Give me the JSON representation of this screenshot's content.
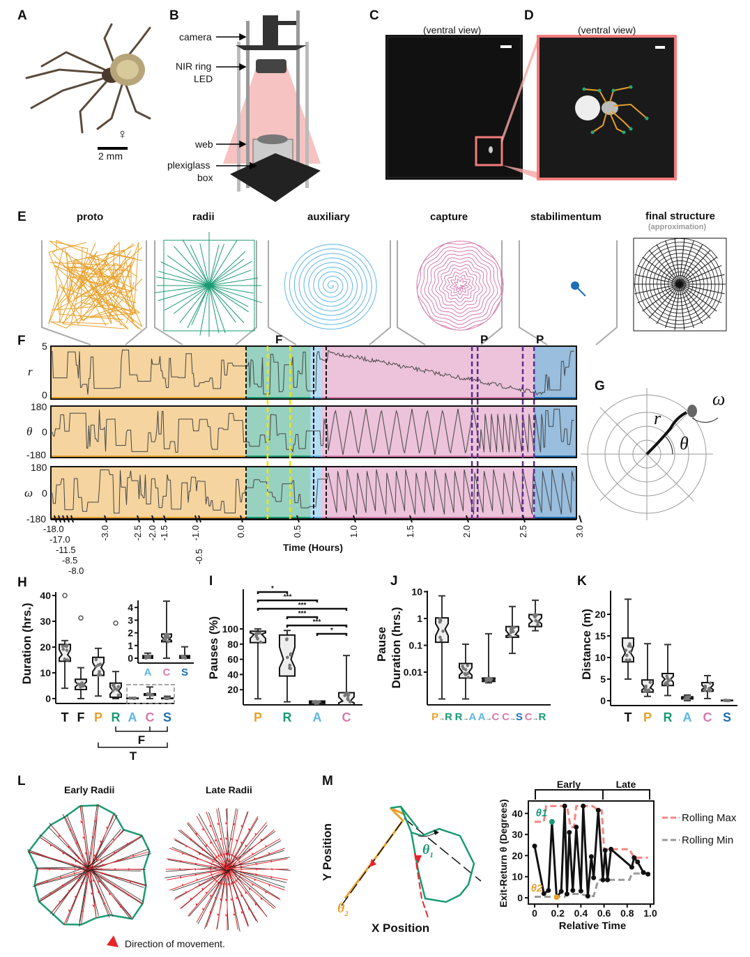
{
  "colors": {
    "proto": "#E8A02A",
    "radii": "#1A9A73",
    "auxiliary": "#5BB5E8",
    "capture": "#D57BAE",
    "stabilimentum": "#1C6FB5",
    "black": "#111111",
    "rolling_max": "#F4847F",
    "rolling_min": "#999999"
  },
  "panels": {
    "A": "A",
    "B": "B",
    "C": "C",
    "D": "D",
    "E": "E",
    "F": "F",
    "G": "G",
    "H": "H",
    "I": "I",
    "J": "J",
    "K": "K",
    "L": "L",
    "M": "M"
  },
  "panel_a": {
    "sex_symbol": "♀",
    "scale_bar": "2 mm"
  },
  "panel_b": {
    "labels": [
      "camera",
      "NIR ring",
      "LED",
      "web",
      "plexiglass",
      "box"
    ]
  },
  "panel_c": {
    "title": "(ventral view)"
  },
  "panel_d": {
    "title": "(ventral view)"
  },
  "panel_e": {
    "stages": [
      "proto",
      "radii",
      "auxiliary",
      "capture",
      "stabilimentum",
      "final structure"
    ],
    "note": "(approximation)"
  },
  "panel_f": {
    "chart_data": {
      "type": "line",
      "rows": [
        {
          "label": "r",
          "ticks": [
            "5",
            "0"
          ]
        },
        {
          "label": "θ",
          "ticks": [
            "180",
            "0",
            "-180"
          ]
        },
        {
          "label": "ω",
          "ticks": [
            "180",
            "0",
            "-180"
          ]
        }
      ],
      "x_ticks": [
        "-18.0",
        "-17.0",
        "-11.5",
        "-8.5",
        "-8.0",
        "-3.0",
        "-2.5",
        "-2.0",
        "-1.5",
        "-1.0",
        "-0.5",
        "0.0",
        "0.5",
        "1.0",
        "1.5",
        "2.0",
        "2.5",
        "3.0"
      ],
      "xlabel": "Time (Hours)",
      "phases": [
        {
          "stage": "proto",
          "start": -18.0,
          "end": 0.05
        },
        {
          "stage": "radii",
          "start": 0.05,
          "end": 0.62
        },
        {
          "stage": "auxiliary",
          "start": 0.62,
          "end": 0.72
        },
        {
          "stage": "capture",
          "start": 0.72,
          "end": 2.6
        },
        {
          "stage": "stabilimentum",
          "start": 2.6,
          "end": 3.0
        }
      ],
      "markers": [
        {
          "label": "F",
          "color": "#F2E600",
          "times": [
            0.24,
            0.44
          ]
        },
        {
          "label": "P",
          "color": "#5B2C91",
          "times": [
            2.05,
            2.1
          ]
        },
        {
          "label": "P",
          "color": "#5B2C91",
          "times": [
            2.5,
            2.6
          ]
        }
      ]
    }
  },
  "panel_g": {
    "labels": {
      "r": "r",
      "theta": "θ",
      "omega": "ω"
    }
  },
  "panel_h": {
    "chart_data": {
      "type": "box",
      "ylabel": "Duration (hrs.)",
      "ylim": [
        0,
        40
      ],
      "y_ticks": [
        "0",
        "10",
        "20",
        "30",
        "40"
      ],
      "categories": [
        "T",
        "F",
        "P",
        "R",
        "A",
        "C",
        "S"
      ],
      "boxes": [
        [
          4,
          14.5,
          17,
          21,
          22.5
        ],
        [
          0,
          3.5,
          5.5,
          7.5,
          12
        ],
        [
          1,
          9,
          12,
          16,
          19.5
        ],
        [
          0,
          0.5,
          3,
          6,
          10.5
        ],
        [
          0,
          0,
          0.1,
          0.2,
          0.4
        ],
        [
          0,
          1.3,
          1.5,
          1.9,
          4.5
        ],
        [
          0,
          0,
          0.1,
          0.2,
          0.9
        ]
      ],
      "outliers": [
        [
          40
        ],
        [
          31.3
        ],
        [],
        [
          29.3
        ],
        [],
        [],
        []
      ],
      "inset": {
        "ylim": [
          0,
          4.5
        ],
        "y_ticks": [
          "0",
          "1",
          "2",
          "3",
          "4"
        ],
        "categories": [
          "A",
          "C",
          "S"
        ]
      },
      "brackets": [
        "F",
        "T"
      ]
    }
  },
  "panel_i": {
    "chart_data": {
      "type": "box",
      "ylabel": "Pauses (%)",
      "ylim": [
        0,
        100
      ],
      "y_ticks": [
        "20",
        "40",
        "60",
        "80",
        "100"
      ],
      "categories": [
        "P",
        "R",
        "A",
        "C"
      ],
      "boxes": [
        [
          8,
          82,
          93,
          97,
          100
        ],
        [
          4,
          38,
          60,
          92,
          98
        ],
        [
          1,
          2,
          3,
          5,
          5
        ],
        [
          0,
          0,
          5,
          16,
          65
        ]
      ],
      "significance": [
        {
          "from": "P",
          "to": "R",
          "label": "*"
        },
        {
          "from": "P",
          "to": "A",
          "label": "***"
        },
        {
          "from": "P",
          "to": "C",
          "label": "***"
        },
        {
          "from": "R",
          "to": "A",
          "label": "***"
        },
        {
          "from": "R",
          "to": "C",
          "label": "***"
        },
        {
          "from": "A",
          "to": "C",
          "label": "*"
        }
      ]
    }
  },
  "panel_j": {
    "chart_data": {
      "type": "box",
      "ylabel_lines": [
        "Pause",
        "Duration (hrs.)"
      ],
      "scale": "log",
      "ylim": [
        0.001,
        10
      ],
      "y_ticks": [
        "10",
        "1",
        "0.1",
        "0.01"
      ],
      "categories": [
        {
          "from": "P",
          "to": "R"
        },
        {
          "from": "R",
          "to": "A"
        },
        {
          "from": "A",
          "to": "C"
        },
        {
          "from": "C",
          "to": "S"
        },
        {
          "from": "C",
          "to": "R"
        }
      ],
      "arrow": "→",
      "boxes": [
        [
          0.001,
          0.13,
          0.4,
          1.05,
          7
        ],
        [
          0.001,
          0.006,
          0.01,
          0.021,
          0.11
        ],
        [
          0.004,
          0.0045,
          0.005,
          0.006,
          0.27
        ],
        [
          0.05,
          0.2,
          0.25,
          0.5,
          2.8
        ],
        [
          0.35,
          0.5,
          0.8,
          1.4,
          4.8
        ]
      ]
    }
  },
  "panel_k": {
    "chart_data": {
      "type": "box",
      "ylabel": "Distance (m)",
      "ylim": [
        0,
        24
      ],
      "y_ticks": [
        "0",
        "5",
        "10",
        "15",
        "20"
      ],
      "categories": [
        "T",
        "P",
        "R",
        "A",
        "C",
        "S"
      ],
      "boxes": [
        [
          5,
          9,
          11,
          14.5,
          23.5
        ],
        [
          1,
          2,
          3,
          4.8,
          13.2
        ],
        [
          1.2,
          3.5,
          5,
          6.3,
          13
        ],
        [
          0,
          0.4,
          0.7,
          0.9,
          1.3
        ],
        [
          0.5,
          2.2,
          3,
          4.2,
          5.8
        ],
        [
          0,
          0,
          0.05,
          0.1,
          0.2
        ]
      ]
    }
  },
  "panel_l": {
    "titles": [
      "Early Radii",
      "Late Radii"
    ],
    "legend": "Direction of movement."
  },
  "panel_m": {
    "traj": {
      "ylabel": "Y Position",
      "xlabel": "X Position",
      "theta1": "θ",
      "theta1_sub": "1",
      "theta2": "θ",
      "theta2_sub": "2"
    },
    "chart_data": {
      "type": "line",
      "xlabel": "Relative Time",
      "ylabel": "Exit-Return θ (Degrees)",
      "xlim": [
        0,
        1
      ],
      "ylim": [
        0,
        45
      ],
      "x_ticks": [
        "0",
        "0.2",
        "0.4",
        "0.6",
        "0.8",
        "1.0"
      ],
      "y_ticks": [
        "0",
        "10",
        "20",
        "30",
        "40"
      ],
      "brackets": [
        "Early",
        "Late"
      ],
      "series": [
        {
          "name": "",
          "x": [
            0,
            0.08,
            0.12,
            0.15,
            0.19,
            0.23,
            0.26,
            0.28,
            0.3,
            0.33,
            0.36,
            0.4,
            0.42,
            0.46,
            0.49,
            0.51,
            0.55,
            0.59,
            0.61,
            0.63,
            0.66,
            0.84,
            0.86,
            0.89,
            0.94,
            0.98
          ],
          "y": [
            24.5,
            2,
            3.5,
            36,
            0.3,
            3,
            43.5,
            1.8,
            31,
            3.5,
            33.5,
            3.2,
            43.5,
            0.8,
            19.5,
            9.5,
            41.5,
            8.5,
            22.5,
            8.5,
            23,
            14.5,
            19,
            17,
            12,
            11.2
          ]
        },
        {
          "name": "Rolling Max",
          "x": [
            0,
            0.08,
            0.1,
            0.28,
            0.31,
            0.34,
            0.36,
            0.5,
            0.55,
            0.58,
            0.6,
            0.82,
            0.86,
            0.98
          ],
          "y": [
            36,
            36,
            43.5,
            43.5,
            33.5,
            33.5,
            43.5,
            43.5,
            41.5,
            41.5,
            23,
            23,
            19,
            19
          ]
        },
        {
          "name": "Rolling Min",
          "x": [
            0,
            0.26,
            0.28,
            0.4,
            0.46,
            0.51,
            0.55,
            0.82,
            0.84,
            0.98
          ],
          "y": [
            0.5,
            0.5,
            1.8,
            1.8,
            0.8,
            0.8,
            8.5,
            8.5,
            11.5,
            11.5
          ]
        }
      ],
      "highlight": [
        {
          "label": "θ1",
          "x": 0.15,
          "y": 36,
          "color": "#1A9A73"
        },
        {
          "label": "θ2",
          "x": 0.19,
          "y": 0.3,
          "color": "#E8A02A"
        }
      ]
    }
  }
}
